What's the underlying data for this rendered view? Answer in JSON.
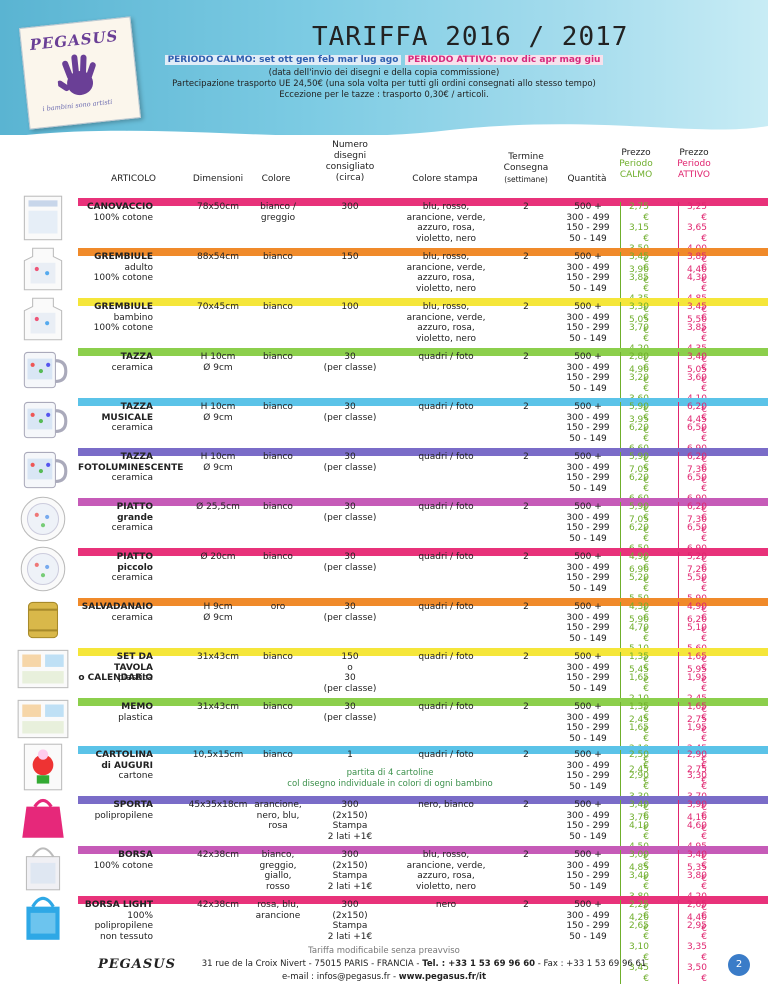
{
  "header": {
    "title": "TARIFFA 2016 / 2017",
    "logo": "PEGASUS",
    "logo_tagline": "i bambini sono artisti",
    "period_calm": "PERIODO CALMO: set ott gen feb mar lug ago",
    "period_active": "PERIODO ATTIVO: nov dic apr mag giu",
    "line2": "(data dell'invio dei disegni e della copia commissione)",
    "line3": "Partecipazione trasporto UE 24,50€ (una sola volta per tutti gli ordini consegnati allo stesso tempo)",
    "line4": "Eccezione per le tazze : trasporto 0,30€ / articoli."
  },
  "columns": {
    "articolo": "ARTICOLO",
    "dimensioni": "Dimensioni",
    "colore": "Colore",
    "numero": [
      "Numero",
      "disegni",
      "consigliato",
      "(circa)"
    ],
    "colore_stampa": "Colore stampa",
    "termine": [
      "Termine",
      "Consegna"
    ],
    "termine_sub": "(settimane)",
    "quantita": "Quantità",
    "prezzo_calmo": [
      "Prezzo",
      "Periodo",
      "CALMO"
    ],
    "prezzo_attivo": [
      "Prezzo",
      "Periodo",
      "ATTIVO"
    ]
  },
  "colors": {
    "calm": "#6fae2c",
    "active": "#e0246f",
    "calm_label": "#6fae2c",
    "active_label": "#e0246f"
  },
  "quantities": [
    "500 +",
    "300 - 499",
    "150 - 299",
    "50 - 149"
  ],
  "rows": [
    {
      "name": [
        "CANOVACCIO"
      ],
      "sub": [
        "100% cotone"
      ],
      "dim": [
        "78x50cm"
      ],
      "col": [
        "bianco /",
        "greggio"
      ],
      "num": [
        "300"
      ],
      "stampa": [
        "blu, rosso,",
        "arancione, verde,",
        "azzuro, rosa,",
        "violetto, nero"
      ],
      "term": "2",
      "calmo": [
        "2,75 €",
        "3,15 €",
        "3,50 €",
        "3,90 €"
      ],
      "attivo": [
        "3,25 €",
        "3,65 €",
        "4,00 €",
        "4,40 €"
      ],
      "band": "#e8327a",
      "thumb": "towel"
    },
    {
      "name": [
        "GREMBIULE"
      ],
      "sub": [
        "adulto",
        "100% cotone"
      ],
      "dim": [
        "88x54cm"
      ],
      "col": [
        "bianco"
      ],
      "num": [
        "150"
      ],
      "stampa": [
        "blu, rosso,",
        "arancione, verde,",
        "azzuro, rosa,",
        "violetto, nero"
      ],
      "term": "2",
      "calmo": [
        "3,45 €",
        "3,85 €",
        "4,35 €",
        "5,05 €"
      ],
      "attivo": [
        "3,85 €",
        "4,30 €",
        "4,85 €",
        "5,50 €"
      ],
      "band": "#f08a2a",
      "thumb": "apron"
    },
    {
      "name": [
        "GREMBIULE"
      ],
      "sub": [
        "bambino",
        "100% cotone"
      ],
      "dim": [
        "70x45cm"
      ],
      "col": [
        "bianco"
      ],
      "num": [
        "100"
      ],
      "stampa": [
        "blu, rosso,",
        "arancione, verde,",
        "azzuro, rosa,",
        "violetto, nero"
      ],
      "term": "2",
      "calmo": [
        "3,30 €",
        "3,70 €",
        "4,20 €",
        "4,90 €"
      ],
      "attivo": [
        "3,45 €",
        "3,85 €",
        "4,35 €",
        "5,05 €"
      ],
      "band": "#f5e63a",
      "thumb": "apron"
    },
    {
      "name": [
        "TAZZA"
      ],
      "sub": [
        "ceramica"
      ],
      "dim": [
        "H 10cm",
        "Ø 9cm"
      ],
      "col": [
        "bianco"
      ],
      "num": [
        "30",
        "(per classe)"
      ],
      "stampa": [
        "quadri / foto"
      ],
      "term": "2",
      "calmo": [
        "2,80 €",
        "3,20 €",
        "3,60 €",
        "3,95 €"
      ],
      "attivo": [
        "3,40 €",
        "3,60 €",
        "4,10 €",
        "4,45 €"
      ],
      "band": "#8ccf4c",
      "thumb": "mug"
    },
    {
      "name": [
        "TAZZA",
        "MUSICALE"
      ],
      "sub": [
        "ceramica"
      ],
      "dim": [
        "H 10cm",
        "Ø 9cm"
      ],
      "col": [
        "bianco"
      ],
      "num": [
        "30",
        "(per classe)"
      ],
      "stampa": [
        "quadri / foto"
      ],
      "term": "2",
      "calmo": [
        "5,90 €",
        "6,20 €",
        "6,60 €",
        "7,05 €"
      ],
      "attivo": [
        "6,20 €",
        "6,50 €",
        "6,90 €",
        "7,30 €"
      ],
      "band": "#5bc3e8",
      "thumb": "mug"
    },
    {
      "name": [
        "TAZZA",
        "FOTOLUMINESCENTE"
      ],
      "sub": [
        "ceramica"
      ],
      "dim": [
        "H 10cm",
        "Ø 9cm"
      ],
      "col": [
        "bianco"
      ],
      "num": [
        "30",
        "(per classe)"
      ],
      "stampa": [
        "quadri / foto"
      ],
      "term": "2",
      "calmo": [
        "5,90 €",
        "6,20 €",
        "6,60 €",
        "7,05 €"
      ],
      "attivo": [
        "6,20 €",
        "6,50 €",
        "6,90 €",
        "7,30 €"
      ],
      "band": "#7a6cc8",
      "thumb": "mug"
    },
    {
      "name": [
        "PIATTO",
        "grande"
      ],
      "sub": [
        "ceramica"
      ],
      "dim": [
        "Ø 25,5cm"
      ],
      "col": [
        "bianco"
      ],
      "num": [
        "30",
        "(per classe)"
      ],
      "stampa": [
        "quadri / foto"
      ],
      "term": "2",
      "calmo": [
        "5,90 €",
        "6,20 €",
        "6,50 €",
        "6,90 €"
      ],
      "attivo": [
        "6,20 €",
        "6,50 €",
        "6,90 €",
        "7,20 €"
      ],
      "band": "#c65bb8",
      "thumb": "plate"
    },
    {
      "name": [
        "PIATTO",
        "piccolo"
      ],
      "sub": [
        "ceramica"
      ],
      "dim": [
        "Ø 20cm"
      ],
      "col": [
        "bianco"
      ],
      "num": [
        "30",
        "(per classe)"
      ],
      "stampa": [
        "quadri / foto"
      ],
      "term": "2",
      "calmo": [
        "4,90 €",
        "5,20 €",
        "5,50 €",
        "5,90 €"
      ],
      "attivo": [
        "5,20 €",
        "5,50 €",
        "5,90 €",
        "6,20 €"
      ],
      "band": "#e8327a",
      "thumb": "plate"
    },
    {
      "name": [
        "SALVADANAIO"
      ],
      "sub": [
        "ceramica"
      ],
      "dim": [
        "H 9cm",
        "Ø 9cm"
      ],
      "col": [
        "oro"
      ],
      "num": [
        "30",
        "(per classe)"
      ],
      "stampa": [
        "quadri / foto"
      ],
      "term": "2",
      "calmo": [
        "4,30 €",
        "4,70 €",
        "5,10 €",
        "5,45 €"
      ],
      "attivo": [
        "4,90 €",
        "5,10 €",
        "5,60 €",
        "5,95 €"
      ],
      "band": "#f08a2a",
      "thumb": "bank"
    },
    {
      "name": [
        "SET DA TAVOLA",
        "o CALENDARIO"
      ],
      "sub": [
        "plastica"
      ],
      "dim": [
        "31x43cm"
      ],
      "col": [
        "bianco"
      ],
      "num": [
        "150",
        "o",
        "30",
        "(per classe)"
      ],
      "stampa": [
        "quadri / foto"
      ],
      "term": "2",
      "calmo": [
        "1,35 €",
        "1,65 €",
        "2,10 €",
        "2,45 €"
      ],
      "attivo": [
        "1,65 €",
        "1,95 €",
        "2,45 €",
        "2,75 €"
      ],
      "band": "#f5e63a",
      "thumb": "mat"
    },
    {
      "name": [
        "MEMO"
      ],
      "sub": [
        "plastica"
      ],
      "dim": [
        "31x43cm"
      ],
      "col": [
        "bianco"
      ],
      "num": [
        "30",
        "(per classe)"
      ],
      "stampa": [
        "quadri / foto"
      ],
      "term": "2",
      "calmo": [
        "1,35 €",
        "1,65 €",
        "2,10 €",
        "2,45 €"
      ],
      "attivo": [
        "1,65 €",
        "1,95 €",
        "2,45 €",
        "2,75 €"
      ],
      "band": "#8ccf4c",
      "thumb": "mat"
    },
    {
      "name": [
        "CARTOLINA",
        "di AUGURI"
      ],
      "sub": [
        "cartone"
      ],
      "dim": [
        "10,5x15cm"
      ],
      "col": [
        "bianco"
      ],
      "num": [
        "1"
      ],
      "stampa": [
        "quadri / foto"
      ],
      "term": "2",
      "calmo": [
        "2,50 €",
        "2,90 €",
        "3,30 €",
        "3,70 €"
      ],
      "attivo": [
        "2,90 €",
        "3,30 €",
        "3,70 €",
        "4,10 €"
      ],
      "band": "#5bc3e8",
      "thumb": "card",
      "note": [
        "partita di 4 cartoline",
        "col disegno individuale in colori di ogni bambino"
      ]
    },
    {
      "name": [
        "SPORTA"
      ],
      "sub": [
        "polipropilene"
      ],
      "dim": [
        "45x35x18cm"
      ],
      "col": [
        "arancione,",
        "nero, blu,",
        "rosa"
      ],
      "num": [
        "300",
        "(2x150)",
        "Stampa",
        "2 lati +1€"
      ],
      "stampa": [
        "nero, bianco"
      ],
      "term": "2",
      "calmo": [
        "3,40 €",
        "4,10 €",
        "4,50 €",
        "4,85 €"
      ],
      "attivo": [
        "3,90 €",
        "4,60 €",
        "4,95 €",
        "5,35 €"
      ],
      "band": "#7a6cc8",
      "thumb": "bag"
    },
    {
      "name": [
        "BORSA"
      ],
      "sub": [
        "100% cotone"
      ],
      "dim": [
        "42x38cm"
      ],
      "col": [
        "bianco,",
        "greggio,",
        "giallo,",
        "rosso"
      ],
      "num": [
        "300",
        "(2x150)",
        "Stampa",
        "2 lati +1€"
      ],
      "stampa": [
        "blu, rosso,",
        "arancione, verde,",
        "azzuro, rosa,",
        "violetto, nero"
      ],
      "term": "2",
      "calmo": [
        "3,00 €",
        "3,40 €",
        "3,80 €",
        "4,20 €"
      ],
      "attivo": [
        "3,40 €",
        "3,80 €",
        "4,20 €",
        "4,40 €"
      ],
      "band": "#c65bb8",
      "thumb": "tote"
    },
    {
      "name": [
        "BORSA LIGHT"
      ],
      "sub": [
        "100% polipropilene",
        "non tessuto"
      ],
      "dim": [
        "42x38cm"
      ],
      "col": [
        "rosa, blu,",
        "arancione"
      ],
      "num": [
        "300",
        "(2x150)",
        "Stampa",
        "2 lati +1€"
      ],
      "stampa": [
        "nero"
      ],
      "term": "2",
      "calmo": [
        "2,25 €",
        "2,65 €",
        "3,10 €",
        "3,45 €"
      ],
      "attivo": [
        "2,65 €",
        "2,95 €",
        "3,35 €",
        "3,50 €"
      ],
      "band": "#e8327a",
      "thumb": "tote2"
    }
  ],
  "footer": {
    "note": "Tariffa modificabile senza preavviso",
    "logo": "PEGASUS",
    "address": "31 rue de la Croix Nivert - 75015 PARIS - FRANCIA -",
    "tel": "Tel. : +33 1 53 69 96 60",
    "fax": "- Fax : +33 1 53 69 96 61",
    "email_label": "e-mail : infos@pegasus.fr -",
    "web": "www.pegasus.fr/it",
    "page": "2"
  }
}
